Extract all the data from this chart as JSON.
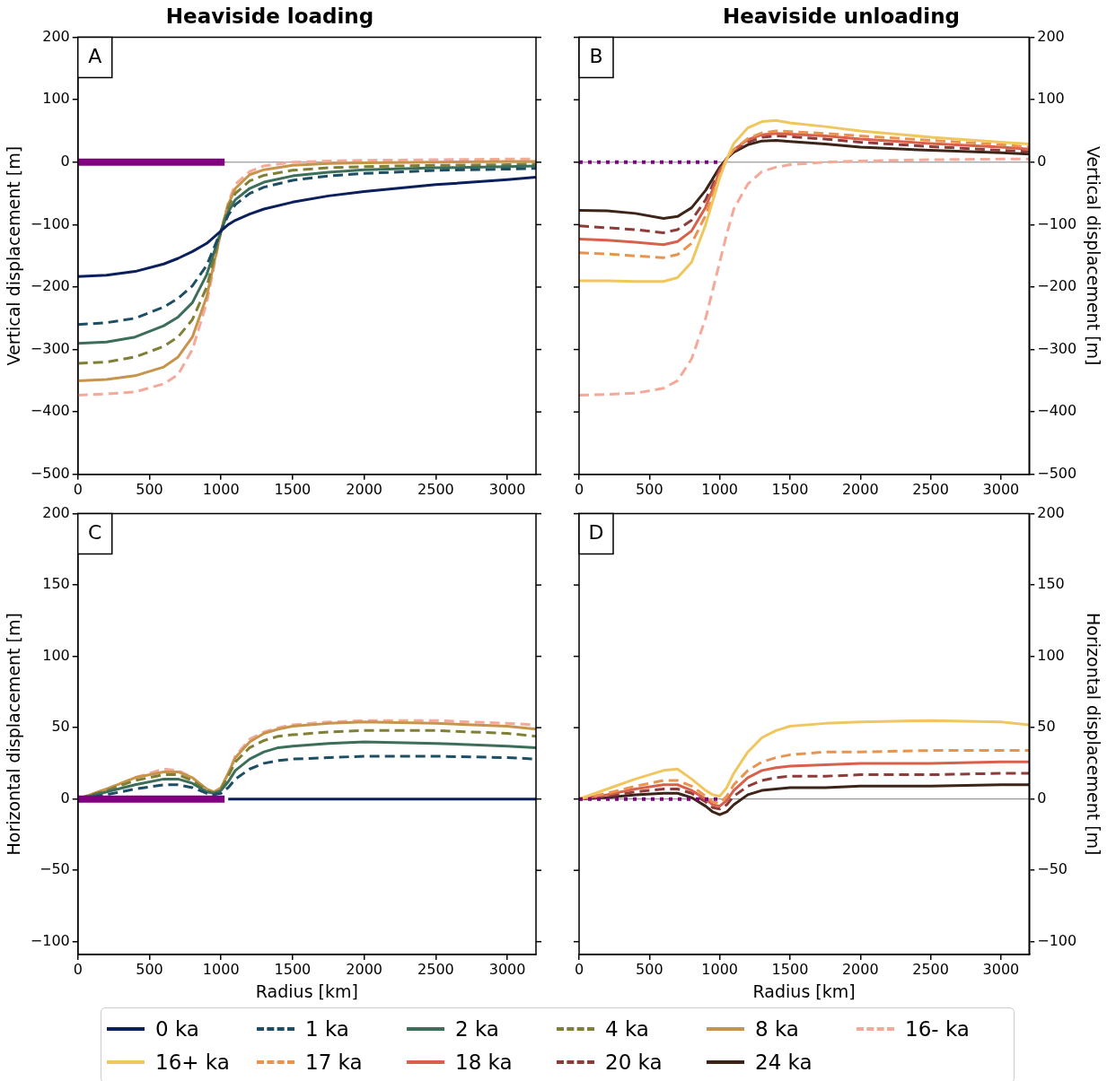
{
  "chart_data": [
    {
      "type": "line",
      "title": "Heaviside loading",
      "ylabel": "Vertical displacement [m]",
      "x": [
        0,
        200,
        400,
        600,
        700,
        800,
        900,
        1000,
        1050,
        1100,
        1200,
        1300,
        1500,
        1750,
        2000,
        2500,
        3000,
        3200
      ],
      "xlim": [
        0,
        3200
      ],
      "xticks": [
        0,
        500,
        1000,
        1500,
        2000,
        2500,
        3000
      ],
      "ylim": [
        -500,
        200
      ],
      "yticks": [
        -500,
        -400,
        -300,
        -200,
        -100,
        0,
        100,
        200
      ],
      "legend": "bottom",
      "annotations": [
        "A"
      ],
      "ref_lines": [
        {
          "axis": "y",
          "value": 0,
          "color": "#808080"
        }
      ],
      "series": [
        {
          "x": [
            0,
            1025
          ],
          "color": "#800080",
          "values": [
            0,
            0
          ]
        },
        {
          "name": "0 ka",
          "color": "#0b1f5c",
          "values": [
            -183,
            -181,
            -175,
            -163,
            -154,
            -143,
            -130,
            -110,
            -100,
            -93,
            -83,
            -75,
            -64,
            -54,
            -47,
            -36,
            -28,
            -24
          ]
        },
        {
          "name": "1 ka",
          "color": "#1d4e63",
          "line_style": "dashed",
          "values": [
            -260,
            -257,
            -250,
            -232,
            -218,
            -198,
            -165,
            -110,
            -85,
            -68,
            -50,
            -40,
            -29,
            -22,
            -18,
            -13,
            -11,
            -10
          ]
        },
        {
          "name": "2 ka",
          "color": "#3d6e5a",
          "values": [
            -290,
            -288,
            -280,
            -262,
            -248,
            -225,
            -180,
            -110,
            -80,
            -60,
            -42,
            -32,
            -22,
            -16,
            -12,
            -9,
            -7,
            -6
          ]
        },
        {
          "name": "4 ka",
          "color": "#7f7f35",
          "line_style": "dashed",
          "values": [
            -322,
            -320,
            -312,
            -295,
            -280,
            -252,
            -200,
            -110,
            -72,
            -50,
            -30,
            -21,
            -13,
            -9,
            -7,
            -5,
            -4,
            -3
          ]
        },
        {
          "name": "8 ka",
          "color": "#c8934a",
          "values": [
            -350,
            -348,
            -342,
            -328,
            -312,
            -280,
            -215,
            -110,
            -68,
            -42,
            -20,
            -12,
            -5,
            -2,
            -1,
            0,
            1,
            1
          ]
        },
        {
          "name": "16- ka",
          "color": "#f4a99a",
          "line_style": "dashed",
          "values": [
            -373,
            -371,
            -368,
            -355,
            -340,
            -300,
            -225,
            -110,
            -65,
            -35,
            -15,
            -6,
            0,
            2,
            3,
            4,
            5,
            5
          ]
        }
      ]
    },
    {
      "type": "line",
      "title": "Heaviside unloading",
      "ylabel": "Vertical displacement [m]",
      "x": [
        0,
        200,
        400,
        600,
        700,
        800,
        900,
        1000,
        1050,
        1100,
        1200,
        1300,
        1400,
        1500,
        1750,
        2000,
        2500,
        3000,
        3200
      ],
      "xlim": [
        0,
        3200
      ],
      "xticks": [
        0,
        500,
        1000,
        1500,
        2000,
        2500,
        3000
      ],
      "ylim": [
        -500,
        200
      ],
      "yticks": [
        -500,
        -400,
        -300,
        -200,
        -100,
        0,
        100,
        200
      ],
      "legend": "bottom",
      "annotations": [
        "B"
      ],
      "ref_lines": [
        {
          "axis": "y",
          "value": 0,
          "color": "#808080"
        }
      ],
      "series": [
        {
          "x": [
            0,
            1000
          ],
          "color": "#800080",
          "line_style": "dotted",
          "values": [
            0,
            0
          ]
        },
        {
          "name": "16+ ka",
          "color": "#f0c75e",
          "values": [
            -190,
            -190,
            -191,
            -191,
            -185,
            -160,
            -100,
            -25,
            5,
            30,
            55,
            65,
            67,
            63,
            57,
            50,
            40,
            32,
            29
          ]
        },
        {
          "name": "17 ka",
          "color": "#e8944e",
          "line_style": "dashed",
          "values": [
            -145,
            -147,
            -150,
            -153,
            -148,
            -130,
            -85,
            -20,
            5,
            20,
            38,
            47,
            50,
            49,
            46,
            42,
            35,
            28,
            24
          ]
        },
        {
          "name": "18 ka",
          "color": "#d9604a",
          "values": [
            -123,
            -125,
            -128,
            -132,
            -127,
            -110,
            -72,
            -15,
            6,
            20,
            36,
            44,
            46,
            45,
            42,
            37,
            30,
            24,
            21
          ]
        },
        {
          "name": "20 ka",
          "color": "#8c3d3a",
          "line_style": "dashed",
          "values": [
            -102,
            -105,
            -108,
            -113,
            -108,
            -93,
            -60,
            -12,
            6,
            18,
            32,
            40,
            42,
            41,
            37,
            32,
            25,
            19,
            17
          ]
        },
        {
          "name": "24 ka",
          "color": "#3d2418",
          "values": [
            -77,
            -78,
            -82,
            -90,
            -87,
            -73,
            -45,
            -8,
            6,
            16,
            28,
            34,
            35,
            33,
            29,
            24,
            19,
            15,
            13
          ]
        },
        {
          "name": "16- ka",
          "color": "#f4a99a",
          "line_style": "dashed",
          "values": [
            -373,
            -372,
            -370,
            -362,
            -350,
            -315,
            -250,
            -160,
            -115,
            -75,
            -35,
            -15,
            -8,
            -4,
            0,
            2,
            4,
            5,
            5
          ]
        }
      ]
    },
    {
      "type": "line",
      "xlabel": "Radius [km]",
      "ylabel": "Horizontal displacement [m]",
      "x": [
        0,
        200,
        400,
        600,
        700,
        800,
        900,
        950,
        1000,
        1050,
        1100,
        1200,
        1300,
        1400,
        1500,
        1750,
        2000,
        2500,
        3000,
        3200
      ],
      "xlim": [
        0,
        3200
      ],
      "xticks": [
        0,
        500,
        1000,
        1500,
        2000,
        2500,
        3000
      ],
      "ylim": [
        -109,
        200
      ],
      "yticks": [
        -100,
        -50,
        0,
        50,
        100,
        150,
        200
      ],
      "legend": "bottom",
      "annotations": [
        "C"
      ],
      "series": [
        {
          "x": [
            0,
            1025
          ],
          "color": "#800080",
          "values": [
            0,
            0
          ]
        },
        {
          "name": "0 ka",
          "color": "#0b1f5c",
          "values": [
            null,
            null,
            null,
            null,
            null,
            null,
            null,
            null,
            null,
            0,
            0,
            0,
            0,
            0,
            0,
            0,
            0,
            0,
            0,
            0
          ]
        },
        {
          "name": "1 ka",
          "color": "#1d4e63",
          "line_style": "dashed",
          "values": [
            0,
            3,
            7,
            10,
            10,
            8,
            4,
            3,
            4,
            8,
            14,
            21,
            25,
            27,
            28,
            29,
            30,
            30,
            29,
            28
          ]
        },
        {
          "name": "2 ka",
          "color": "#3d6e5a",
          "values": [
            0,
            5,
            10,
            14,
            14,
            11,
            5,
            4,
            6,
            12,
            20,
            28,
            33,
            36,
            37,
            39,
            40,
            39,
            37,
            36
          ]
        },
        {
          "name": "4 ka",
          "color": "#7f7f35",
          "line_style": "dashed",
          "values": [
            0,
            6,
            13,
            17,
            17,
            13,
            6,
            4,
            7,
            16,
            26,
            36,
            41,
            44,
            45,
            47,
            48,
            48,
            46,
            44
          ]
        },
        {
          "name": "8 ka",
          "color": "#c8934a",
          "values": [
            0,
            7,
            15,
            19,
            19,
            15,
            7,
            5,
            8,
            18,
            29,
            40,
            46,
            49,
            51,
            53,
            54,
            53,
            51,
            49
          ]
        },
        {
          "name": "16- ka",
          "color": "#f4a99a",
          "line_style": "dashed",
          "values": [
            0,
            7,
            15,
            21,
            20,
            15,
            6,
            4,
            7,
            18,
            30,
            42,
            47,
            50,
            52,
            54,
            55,
            55,
            53,
            52
          ]
        }
      ]
    },
    {
      "type": "line",
      "xlabel": "Radius [km]",
      "ylabel": "Horizontal displacement [m]",
      "x": [
        0,
        200,
        400,
        600,
        700,
        800,
        900,
        950,
        1000,
        1050,
        1100,
        1200,
        1300,
        1400,
        1500,
        1750,
        2000,
        2500,
        3000,
        3200
      ],
      "xlim": [
        0,
        3200
      ],
      "xticks": [
        0,
        500,
        1000,
        1500,
        2000,
        2500,
        3000
      ],
      "ylim": [
        -109,
        200
      ],
      "yticks": [
        -100,
        -50,
        0,
        50,
        100,
        150,
        200
      ],
      "legend": "bottom",
      "annotations": [
        "D"
      ],
      "ref_lines": [
        {
          "axis": "y",
          "value": 0,
          "color": "#808080"
        }
      ],
      "series": [
        {
          "x": [
            0,
            1000
          ],
          "color": "#800080",
          "line_style": "dotted",
          "values": [
            0,
            0
          ]
        },
        {
          "name": "16+ ka",
          "color": "#f0c75e",
          "values": [
            0,
            7,
            14,
            20,
            21,
            14,
            6,
            3,
            2,
            8,
            18,
            33,
            43,
            48,
            51,
            53,
            54,
            55,
            54,
            52
          ]
        },
        {
          "name": "17 ka",
          "color": "#e8944e",
          "line_style": "dashed",
          "values": [
            0,
            4,
            9,
            13,
            13,
            9,
            2,
            -2,
            -3,
            2,
            10,
            20,
            26,
            29,
            31,
            33,
            33,
            34,
            34,
            34
          ]
        },
        {
          "name": "18 ka",
          "color": "#d9604a",
          "values": [
            0,
            3,
            7,
            10,
            10,
            6,
            0,
            -4,
            -5,
            -1,
            6,
            15,
            20,
            22,
            23,
            24,
            25,
            25,
            26,
            26
          ]
        },
        {
          "name": "20 ka",
          "color": "#8c3d3a",
          "line_style": "dashed",
          "values": [
            0,
            2,
            5,
            7,
            7,
            4,
            -2,
            -6,
            -7,
            -4,
            2,
            9,
            13,
            15,
            16,
            16,
            17,
            17,
            18,
            18
          ]
        },
        {
          "name": "24 ka",
          "color": "#3d2418",
          "values": [
            0,
            1,
            3,
            4,
            4,
            1,
            -5,
            -9,
            -11,
            -9,
            -4,
            3,
            6,
            7,
            8,
            8,
            9,
            9,
            10,
            10
          ]
        }
      ]
    }
  ]
}
